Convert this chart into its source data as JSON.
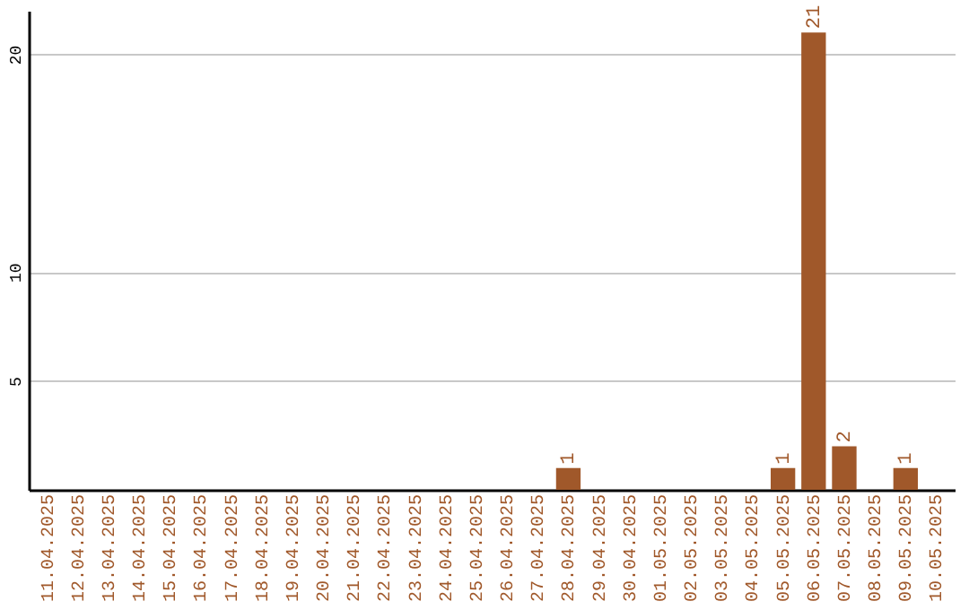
{
  "chart_data": {
    "type": "bar",
    "categories": [
      "11.04.2025",
      "12.04.2025",
      "13.04.2025",
      "14.04.2025",
      "15.04.2025",
      "16.04.2025",
      "17.04.2025",
      "18.04.2025",
      "19.04.2025",
      "20.04.2025",
      "21.04.2025",
      "22.04.2025",
      "23.04.2025",
      "24.04.2025",
      "25.04.2025",
      "26.04.2025",
      "27.04.2025",
      "28.04.2025",
      "29.04.2025",
      "30.04.2025",
      "01.05.2025",
      "02.05.2025",
      "03.05.2025",
      "04.05.2025",
      "05.05.2025",
      "06.05.2025",
      "07.05.2025",
      "08.05.2025",
      "09.05.2025",
      "10.05.2025"
    ],
    "values": [
      0,
      0,
      0,
      0,
      0,
      0,
      0,
      0,
      0,
      0,
      0,
      0,
      0,
      0,
      0,
      0,
      0,
      1,
      0,
      0,
      0,
      0,
      0,
      0,
      1,
      21,
      2,
      0,
      1,
      0
    ],
    "value_labels": [
      null,
      null,
      null,
      null,
      null,
      null,
      null,
      null,
      null,
      null,
      null,
      null,
      null,
      null,
      null,
      null,
      null,
      "1",
      null,
      null,
      null,
      null,
      null,
      null,
      "1",
      "21",
      "2",
      null,
      "1",
      null
    ],
    "color": "#a0582a",
    "ylim": [
      0,
      22
    ],
    "yticks": [
      5,
      10,
      20
    ],
    "grid": "y"
  }
}
